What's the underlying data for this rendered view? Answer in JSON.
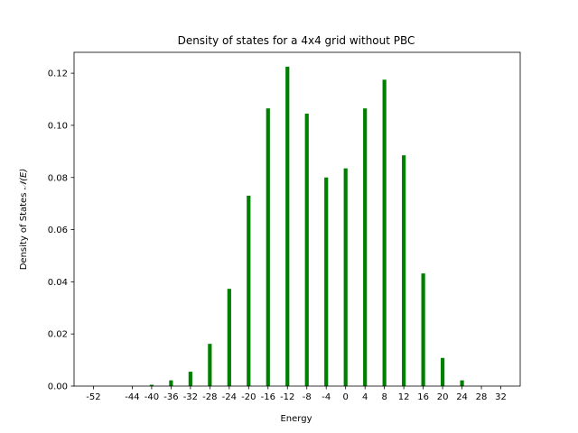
{
  "chart_data": {
    "type": "bar",
    "title": "Density of states for a 4x4 grid without PBC",
    "xlabel": "Energy",
    "ylabel_prefix": "Density of States ",
    "ylabel_symbol": "𝒩(E)",
    "bar_color": "#008000",
    "x": [
      -48,
      -44,
      -40,
      -36,
      -32,
      -28,
      -24,
      -20,
      -16,
      -12,
      -8,
      -4,
      0,
      4,
      8,
      12,
      16,
      20,
      24,
      28,
      32
    ],
    "values": [
      0.0,
      0.0,
      0.0005,
      0.0022,
      0.0055,
      0.0162,
      0.0373,
      0.073,
      0.1065,
      0.1225,
      0.1045,
      0.08,
      0.0835,
      0.1065,
      0.1175,
      0.0885,
      0.0432,
      0.0108,
      0.0022,
      0.0,
      0.0
    ],
    "xlim": [
      -56,
      36
    ],
    "ylim": [
      0,
      0.128
    ],
    "xticks": [
      -52,
      -44,
      -40,
      -36,
      -32,
      -28,
      -24,
      -20,
      -16,
      -12,
      -8,
      -4,
      0,
      4,
      8,
      12,
      16,
      20,
      24,
      28,
      32
    ],
    "xtick_labels": [
      "-52",
      "-44",
      "-40",
      "-36",
      "-32",
      "-28",
      "-24",
      "-20",
      "-16",
      "-12",
      "-8",
      "-4",
      "0",
      "4",
      "8",
      "12",
      "16",
      "20",
      "24",
      "28",
      "32"
    ],
    "yticks": [
      0.0,
      0.02,
      0.04,
      0.06,
      0.08,
      0.1,
      0.12
    ],
    "ytick_labels": [
      "0.00",
      "0.02",
      "0.04",
      "0.06",
      "0.08",
      "0.10",
      "0.12"
    ],
    "grid": false,
    "legend": "none"
  }
}
